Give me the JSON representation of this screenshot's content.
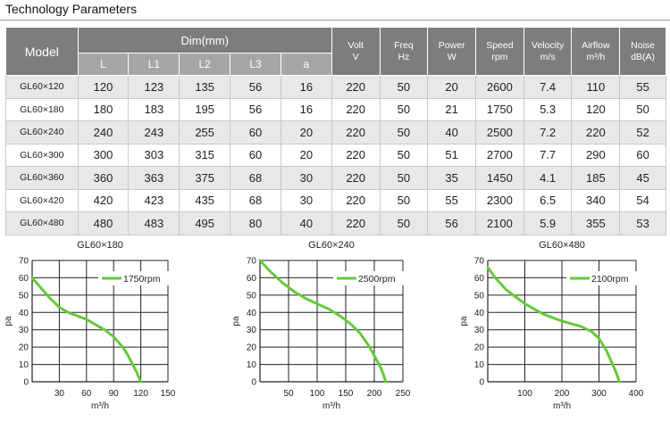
{
  "page_title": "Technology Parameters",
  "table": {
    "headers": {
      "model": "Model",
      "dim_group": "Dim(mm)",
      "dims": [
        "L",
        "L1",
        "L2",
        "L3",
        "a"
      ],
      "volt": [
        "Volt",
        "V"
      ],
      "freq": [
        "Freq",
        "Hz"
      ],
      "power": [
        "Power",
        "W"
      ],
      "speed": [
        "Speed",
        "rpm"
      ],
      "velocity": [
        "Velocity",
        "m/s"
      ],
      "airflow": [
        "Airflow",
        "m³/h"
      ],
      "noise": [
        "Noise",
        "dB(A)"
      ]
    },
    "rows": [
      [
        "GL60×120",
        "120",
        "123",
        "135",
        "56",
        "16",
        "220",
        "50",
        "20",
        "2600",
        "7.4",
        "110",
        "55"
      ],
      [
        "GL60×180",
        "180",
        "183",
        "195",
        "56",
        "16",
        "220",
        "50",
        "21",
        "1750",
        "5.3",
        "120",
        "50"
      ],
      [
        "GL60×240",
        "240",
        "243",
        "255",
        "60",
        "20",
        "220",
        "50",
        "40",
        "2500",
        "7.2",
        "220",
        "52"
      ],
      [
        "GL60×300",
        "300",
        "303",
        "315",
        "60",
        "20",
        "220",
        "50",
        "51",
        "2700",
        "7.7",
        "290",
        "60"
      ],
      [
        "GL60×360",
        "360",
        "363",
        "375",
        "68",
        "30",
        "220",
        "50",
        "35",
        "1450",
        "4.1",
        "185",
        "45"
      ],
      [
        "GL60×420",
        "420",
        "423",
        "435",
        "68",
        "30",
        "220",
        "50",
        "55",
        "2300",
        "6.5",
        "340",
        "54"
      ],
      [
        "GL60×480",
        "480",
        "483",
        "495",
        "80",
        "40",
        "220",
        "50",
        "56",
        "2100",
        "5.9",
        "355",
        "53"
      ]
    ]
  },
  "chart_data": [
    {
      "type": "line",
      "title": "GL60×180",
      "xlabel": "m³/h",
      "ylabel": "pa",
      "xlim": [
        0,
        150
      ],
      "ylim": [
        0,
        70
      ],
      "xticks": [
        "30",
        "60",
        "90",
        "120",
        "150"
      ],
      "yticks": [
        "0",
        "10",
        "20",
        "30",
        "40",
        "50",
        "60",
        "70"
      ],
      "grid": true,
      "legend_position": "top-right",
      "series": [
        {
          "name": "1750rpm",
          "color": "#66c93a",
          "x": [
            0,
            10,
            20,
            30,
            40,
            50,
            60,
            70,
            80,
            90,
            100,
            105,
            110,
            115,
            120
          ],
          "y": [
            60,
            54,
            48,
            43,
            40,
            38,
            36,
            33,
            30,
            26,
            20,
            16,
            11,
            6,
            0
          ]
        }
      ]
    },
    {
      "type": "line",
      "title": "GL60×240",
      "xlabel": "m³/h",
      "ylabel": "pa",
      "xlim": [
        0,
        250
      ],
      "ylim": [
        0,
        70
      ],
      "xticks": [
        "50",
        "100",
        "150",
        "200",
        "250"
      ],
      "yticks": [
        "0",
        "10",
        "20",
        "30",
        "40",
        "50",
        "60",
        "70"
      ],
      "grid": true,
      "legend_position": "top-right",
      "series": [
        {
          "name": "2500rpm",
          "color": "#66c93a",
          "x": [
            0,
            20,
            40,
            60,
            80,
            100,
            120,
            140,
            160,
            175,
            190,
            200,
            210,
            215,
            220
          ],
          "y": [
            70,
            63,
            57,
            52,
            48,
            45,
            42,
            38,
            33,
            28,
            21,
            15,
            9,
            5,
            0
          ]
        }
      ]
    },
    {
      "type": "line",
      "title": "GL60×480",
      "xlabel": "m³/h",
      "ylabel": "pa",
      "xlim": [
        0,
        400
      ],
      "ylim": [
        0,
        70
      ],
      "xticks": [
        "100",
        "200",
        "300",
        "400"
      ],
      "yticks": [
        "0",
        "10",
        "20",
        "30",
        "40",
        "50",
        "60",
        "70"
      ],
      "grid": true,
      "legend_position": "top-right",
      "series": [
        {
          "name": "2100rpm",
          "color": "#66c93a",
          "x": [
            0,
            20,
            50,
            100,
            150,
            200,
            250,
            280,
            300,
            320,
            335,
            345,
            355
          ],
          "y": [
            66,
            60,
            53,
            45,
            39,
            35,
            32,
            29,
            25,
            18,
            11,
            6,
            0
          ]
        }
      ]
    }
  ]
}
